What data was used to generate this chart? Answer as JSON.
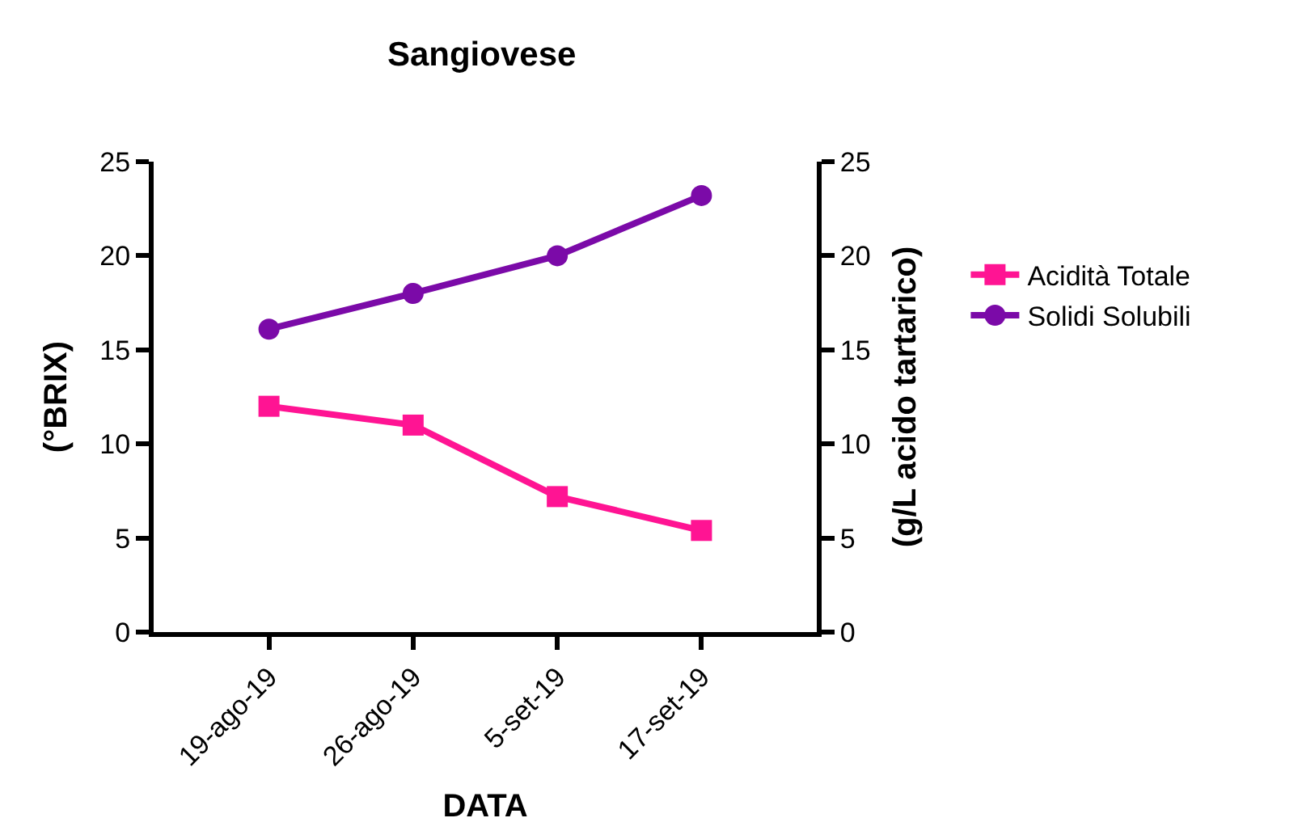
{
  "chart_data": {
    "type": "line",
    "title": "Sangiovese",
    "xlabel": "DATA",
    "ylabel": "(°BRIX)",
    "y2label": "(g/L acido tartarico)",
    "categories": [
      "19-ago-19",
      "26-ago-19",
      "5-set-19",
      "17-set-19"
    ],
    "series": [
      {
        "name": "Acidità Totale",
        "color": "#ff1493",
        "values": [
          12.0,
          11.0,
          7.2,
          5.4
        ],
        "marker": "square",
        "axis": "y2"
      },
      {
        "name": "Solidi Solubili",
        "color": "#7b0aa8",
        "values": [
          16.1,
          18.0,
          20.0,
          23.2
        ],
        "marker": "circle"
      }
    ],
    "ylim": [
      0,
      25
    ],
    "yticks": [
      0,
      5,
      10,
      15,
      20,
      25
    ],
    "y2lim": [
      0,
      25
    ],
    "y2ticks": [
      0,
      5,
      10,
      15,
      20,
      25
    ],
    "legend": "right",
    "line_style": "solid"
  }
}
